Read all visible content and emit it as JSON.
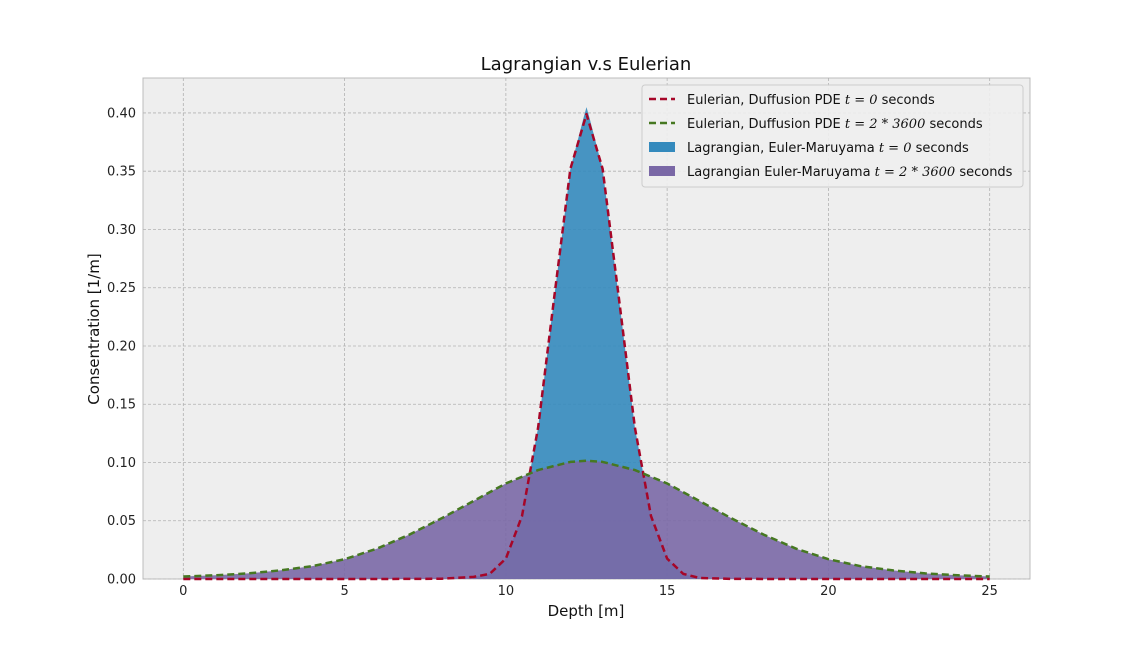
{
  "chart_data": {
    "type": "area",
    "title": "Lagrangian v.s Eulerian",
    "xlabel": "Depth [m]",
    "ylabel": "Consentration [1/m]",
    "xlim": [
      -1.25,
      26.25
    ],
    "ylim": [
      0,
      0.43
    ],
    "x_ticks": [
      0,
      5,
      10,
      15,
      20,
      25
    ],
    "x_tick_labels": [
      "0",
      "5",
      "10",
      "15",
      "20",
      "25"
    ],
    "y_ticks": [
      0,
      0.05,
      0.1,
      0.15,
      0.2,
      0.25,
      0.3,
      0.35,
      0.4
    ],
    "y_tick_labels": [
      "0.00",
      "0.05",
      "0.10",
      "0.15",
      "0.20",
      "0.25",
      "0.30",
      "0.35",
      "0.40"
    ],
    "grid": true,
    "legend_position": "top-right",
    "series": [
      {
        "name": "Eulerian, Duffusion PDE",
        "name_suffix": "seconds",
        "math": "t = 0",
        "style": "dashed-line",
        "color": "#a60628",
        "x": [
          0,
          2,
          4,
          6,
          8,
          9,
          9.5,
          10,
          10.5,
          11,
          11.5,
          12,
          12.5,
          13,
          13.5,
          14,
          14.5,
          15,
          15.5,
          16,
          17,
          19,
          21,
          23,
          25
        ],
        "y": [
          0,
          0,
          0,
          0,
          0.0002,
          0.0018,
          0.0044,
          0.0175,
          0.054,
          0.13,
          0.242,
          0.352,
          0.399,
          0.352,
          0.242,
          0.13,
          0.054,
          0.0175,
          0.0044,
          0.0009,
          0.0001,
          0,
          0,
          0,
          0
        ]
      },
      {
        "name": "Eulerian, Duffusion PDE",
        "name_suffix": "seconds",
        "math": "t = 2 * 3600",
        "style": "dashed-line",
        "color": "#467821",
        "x": [
          0,
          1,
          2,
          3,
          4,
          5,
          6,
          7,
          8,
          9,
          10,
          11,
          12,
          12.5,
          13,
          14,
          15,
          16,
          17,
          18,
          19,
          20,
          21,
          22,
          23,
          24,
          25
        ],
        "y": [
          0.0021,
          0.0032,
          0.0048,
          0.0074,
          0.011,
          0.017,
          0.026,
          0.038,
          0.052,
          0.067,
          0.082,
          0.0935,
          0.1005,
          0.1015,
          0.1005,
          0.0935,
          0.082,
          0.067,
          0.052,
          0.038,
          0.026,
          0.017,
          0.011,
          0.0074,
          0.0048,
          0.0032,
          0.0021
        ]
      },
      {
        "name": "Lagrangian, Euler-Maruyama",
        "name_suffix": "seconds",
        "math": "t = 0",
        "style": "filled-histogram",
        "color": "#348abd",
        "x": [
          9,
          9.5,
          10,
          10.5,
          11,
          11.5,
          12,
          12.4,
          12.5,
          12.6,
          13,
          13.5,
          14,
          14.5,
          15,
          15.5,
          16
        ],
        "y": [
          0.0018,
          0.0044,
          0.0175,
          0.054,
          0.13,
          0.242,
          0.352,
          0.395,
          0.405,
          0.395,
          0.352,
          0.242,
          0.13,
          0.054,
          0.0175,
          0.0044,
          0.0009
        ]
      },
      {
        "name": "Lagrangian Euler-Maruyama",
        "name_suffix": "seconds",
        "math": "t = 2 * 3600",
        "style": "filled-histogram",
        "color": "#7a68a6",
        "x": [
          0,
          1,
          2,
          3,
          4,
          5,
          6,
          7,
          8,
          9,
          10,
          11,
          12,
          12.5,
          13,
          14,
          15,
          16,
          17,
          18,
          19,
          20,
          21,
          22,
          23,
          24,
          25
        ],
        "y": [
          0.0021,
          0.0032,
          0.0048,
          0.0074,
          0.011,
          0.017,
          0.026,
          0.038,
          0.052,
          0.067,
          0.082,
          0.0935,
          0.1005,
          0.1015,
          0.1005,
          0.0935,
          0.082,
          0.067,
          0.052,
          0.038,
          0.026,
          0.017,
          0.011,
          0.0074,
          0.0048,
          0.0032,
          0.0021
        ]
      }
    ]
  }
}
